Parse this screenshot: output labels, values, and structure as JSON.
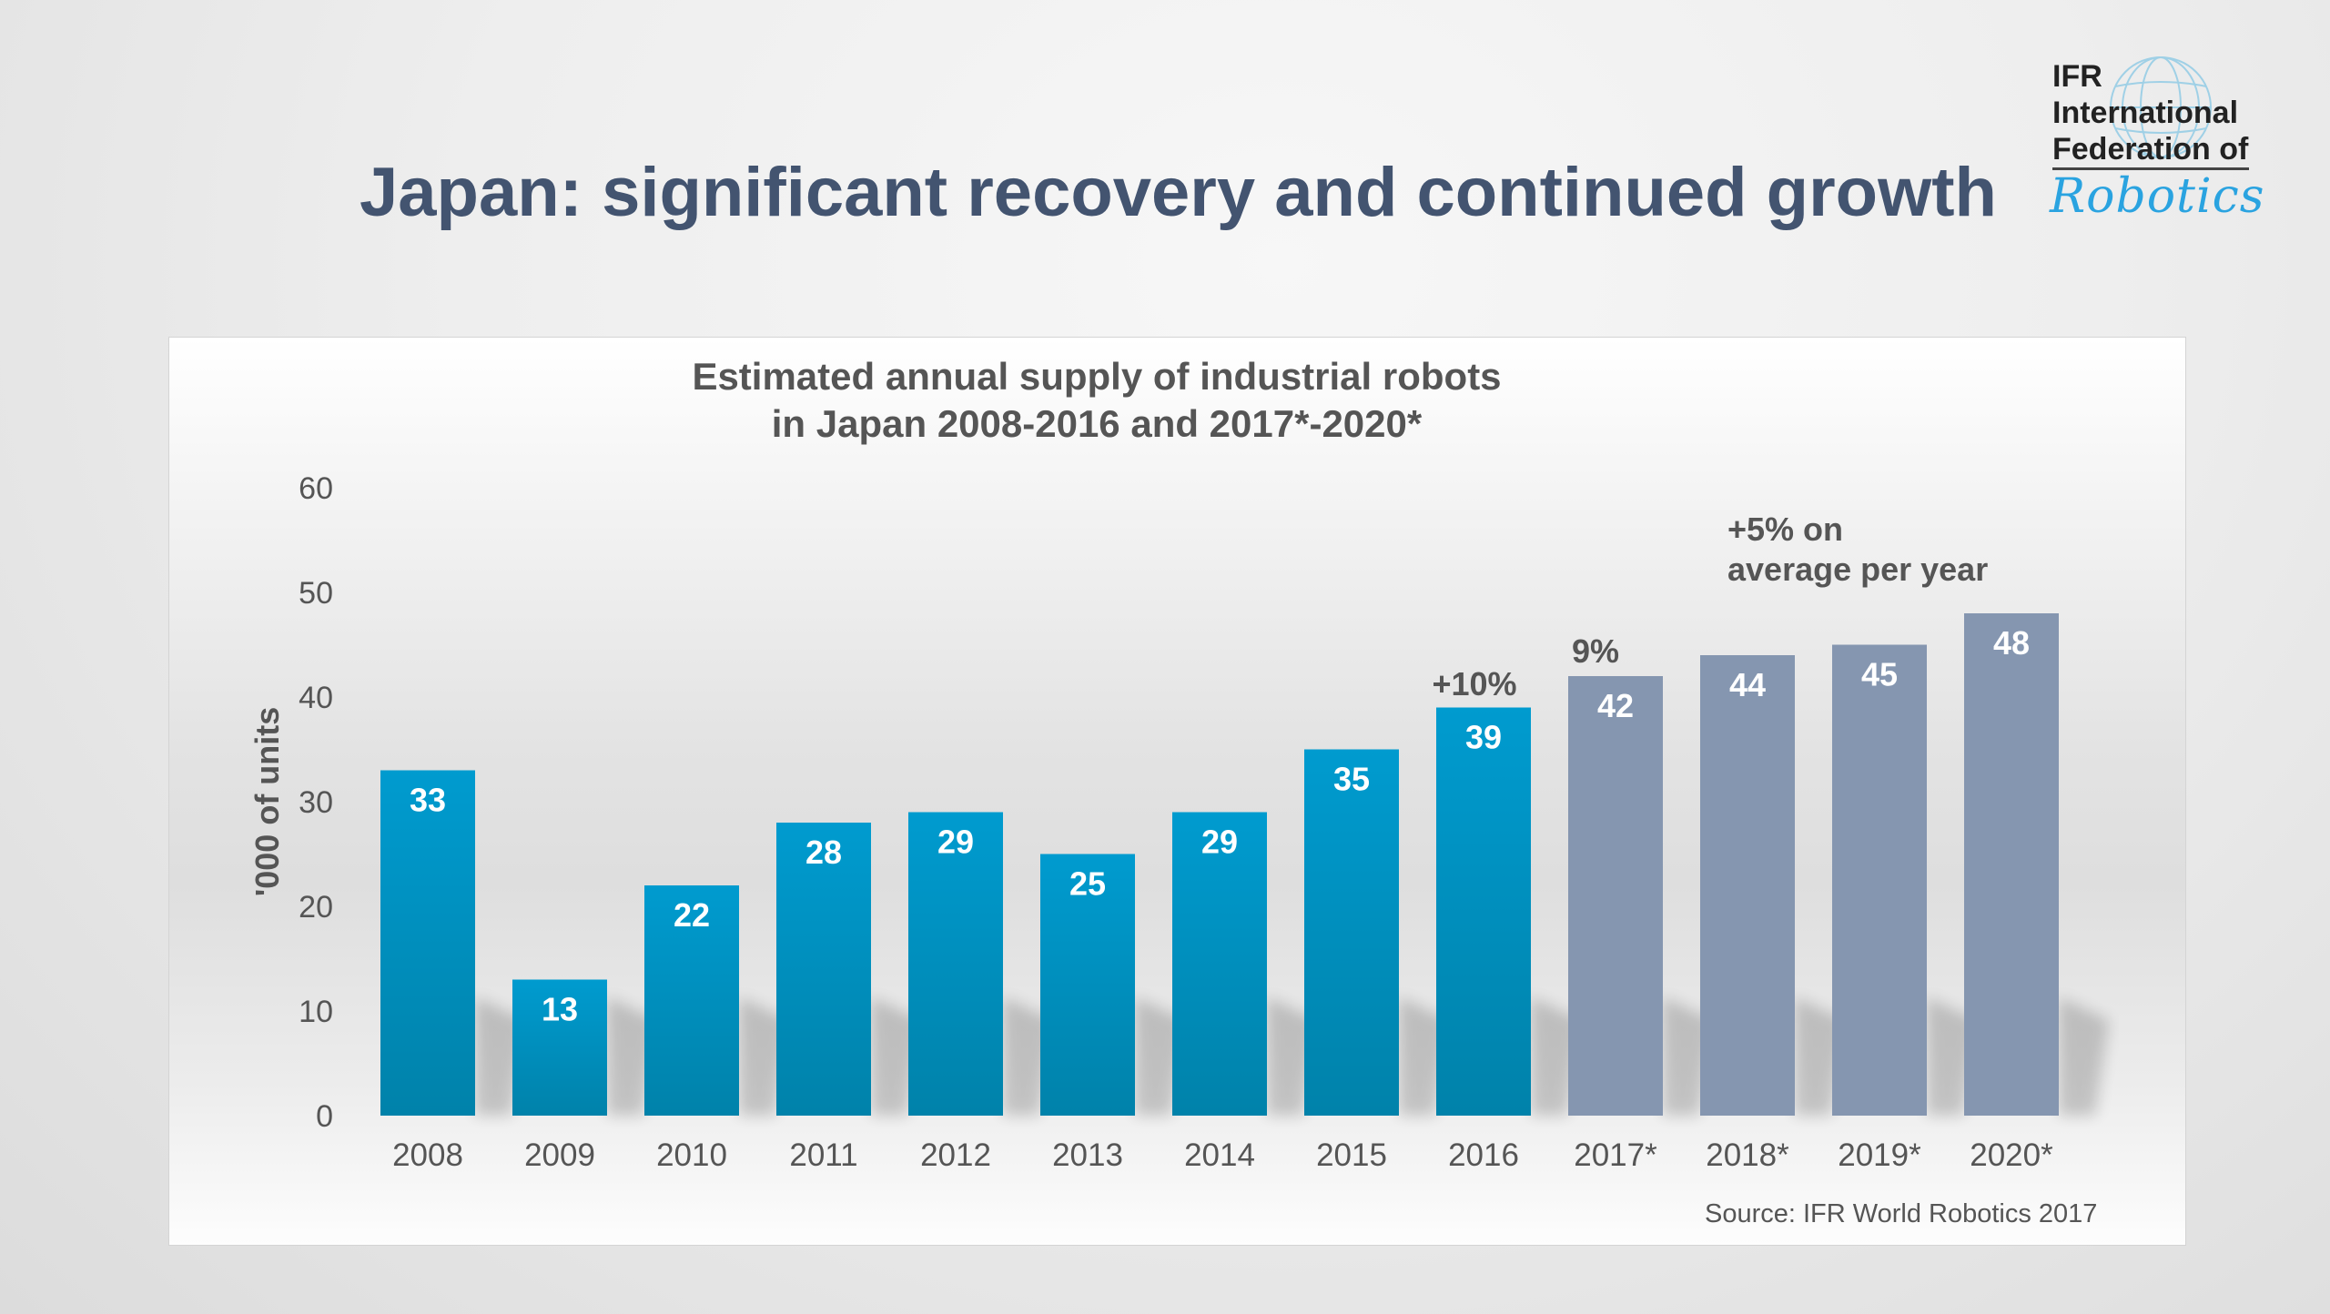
{
  "slide": {
    "title": "Japan: significant recovery and continued growth"
  },
  "logo": {
    "line1": "IFR",
    "line2": "International",
    "line3": "Federation of",
    "script": "Robotics",
    "globe_icon": "globe-icon"
  },
  "colors": {
    "actual_bar_top": "#009bcf",
    "actual_bar_bottom": "#0082aa",
    "forecast_bar": "#8596b0",
    "title": "#435470",
    "text": "#555555",
    "logo_blue": "#2aa3e0"
  },
  "chart_data": {
    "type": "bar",
    "title": "Estimated annual supply of industrial robots in Japan 2008-2016 and 2017*-2020*",
    "title_lines": [
      "Estimated annual supply of industrial robots",
      "in Japan 2008-2016 and 2017*-2020*"
    ],
    "xlabel": "",
    "ylabel": "'000 of units",
    "ylim": [
      0,
      60
    ],
    "yticks": [
      0,
      10,
      20,
      30,
      40,
      50,
      60
    ],
    "grid": false,
    "categories": [
      "2008",
      "2009",
      "2010",
      "2011",
      "2012",
      "2013",
      "2014",
      "2015",
      "2016",
      "2017*",
      "2018*",
      "2019*",
      "2020*"
    ],
    "series": [
      {
        "name": "Annual supply",
        "values": [
          33,
          13,
          22,
          28,
          29,
          25,
          29,
          35,
          39,
          42,
          44,
          45,
          48
        ],
        "data_labels": [
          "33",
          "13",
          "22",
          "28",
          "29",
          "25",
          "29",
          "35",
          "39",
          "42",
          "44",
          "45",
          "48"
        ],
        "forecast": [
          false,
          false,
          false,
          false,
          false,
          false,
          false,
          false,
          false,
          true,
          true,
          true,
          true
        ]
      }
    ],
    "annotations": [
      {
        "text": "+10%",
        "category": "2016"
      },
      {
        "text": "9%",
        "category": "2017*"
      },
      {
        "text": "+5% on",
        "category": "2018*",
        "line": 1
      },
      {
        "text": " average per year",
        "category": "2018*",
        "line": 2
      }
    ],
    "source": "Source: IFR World Robotics 2017"
  }
}
